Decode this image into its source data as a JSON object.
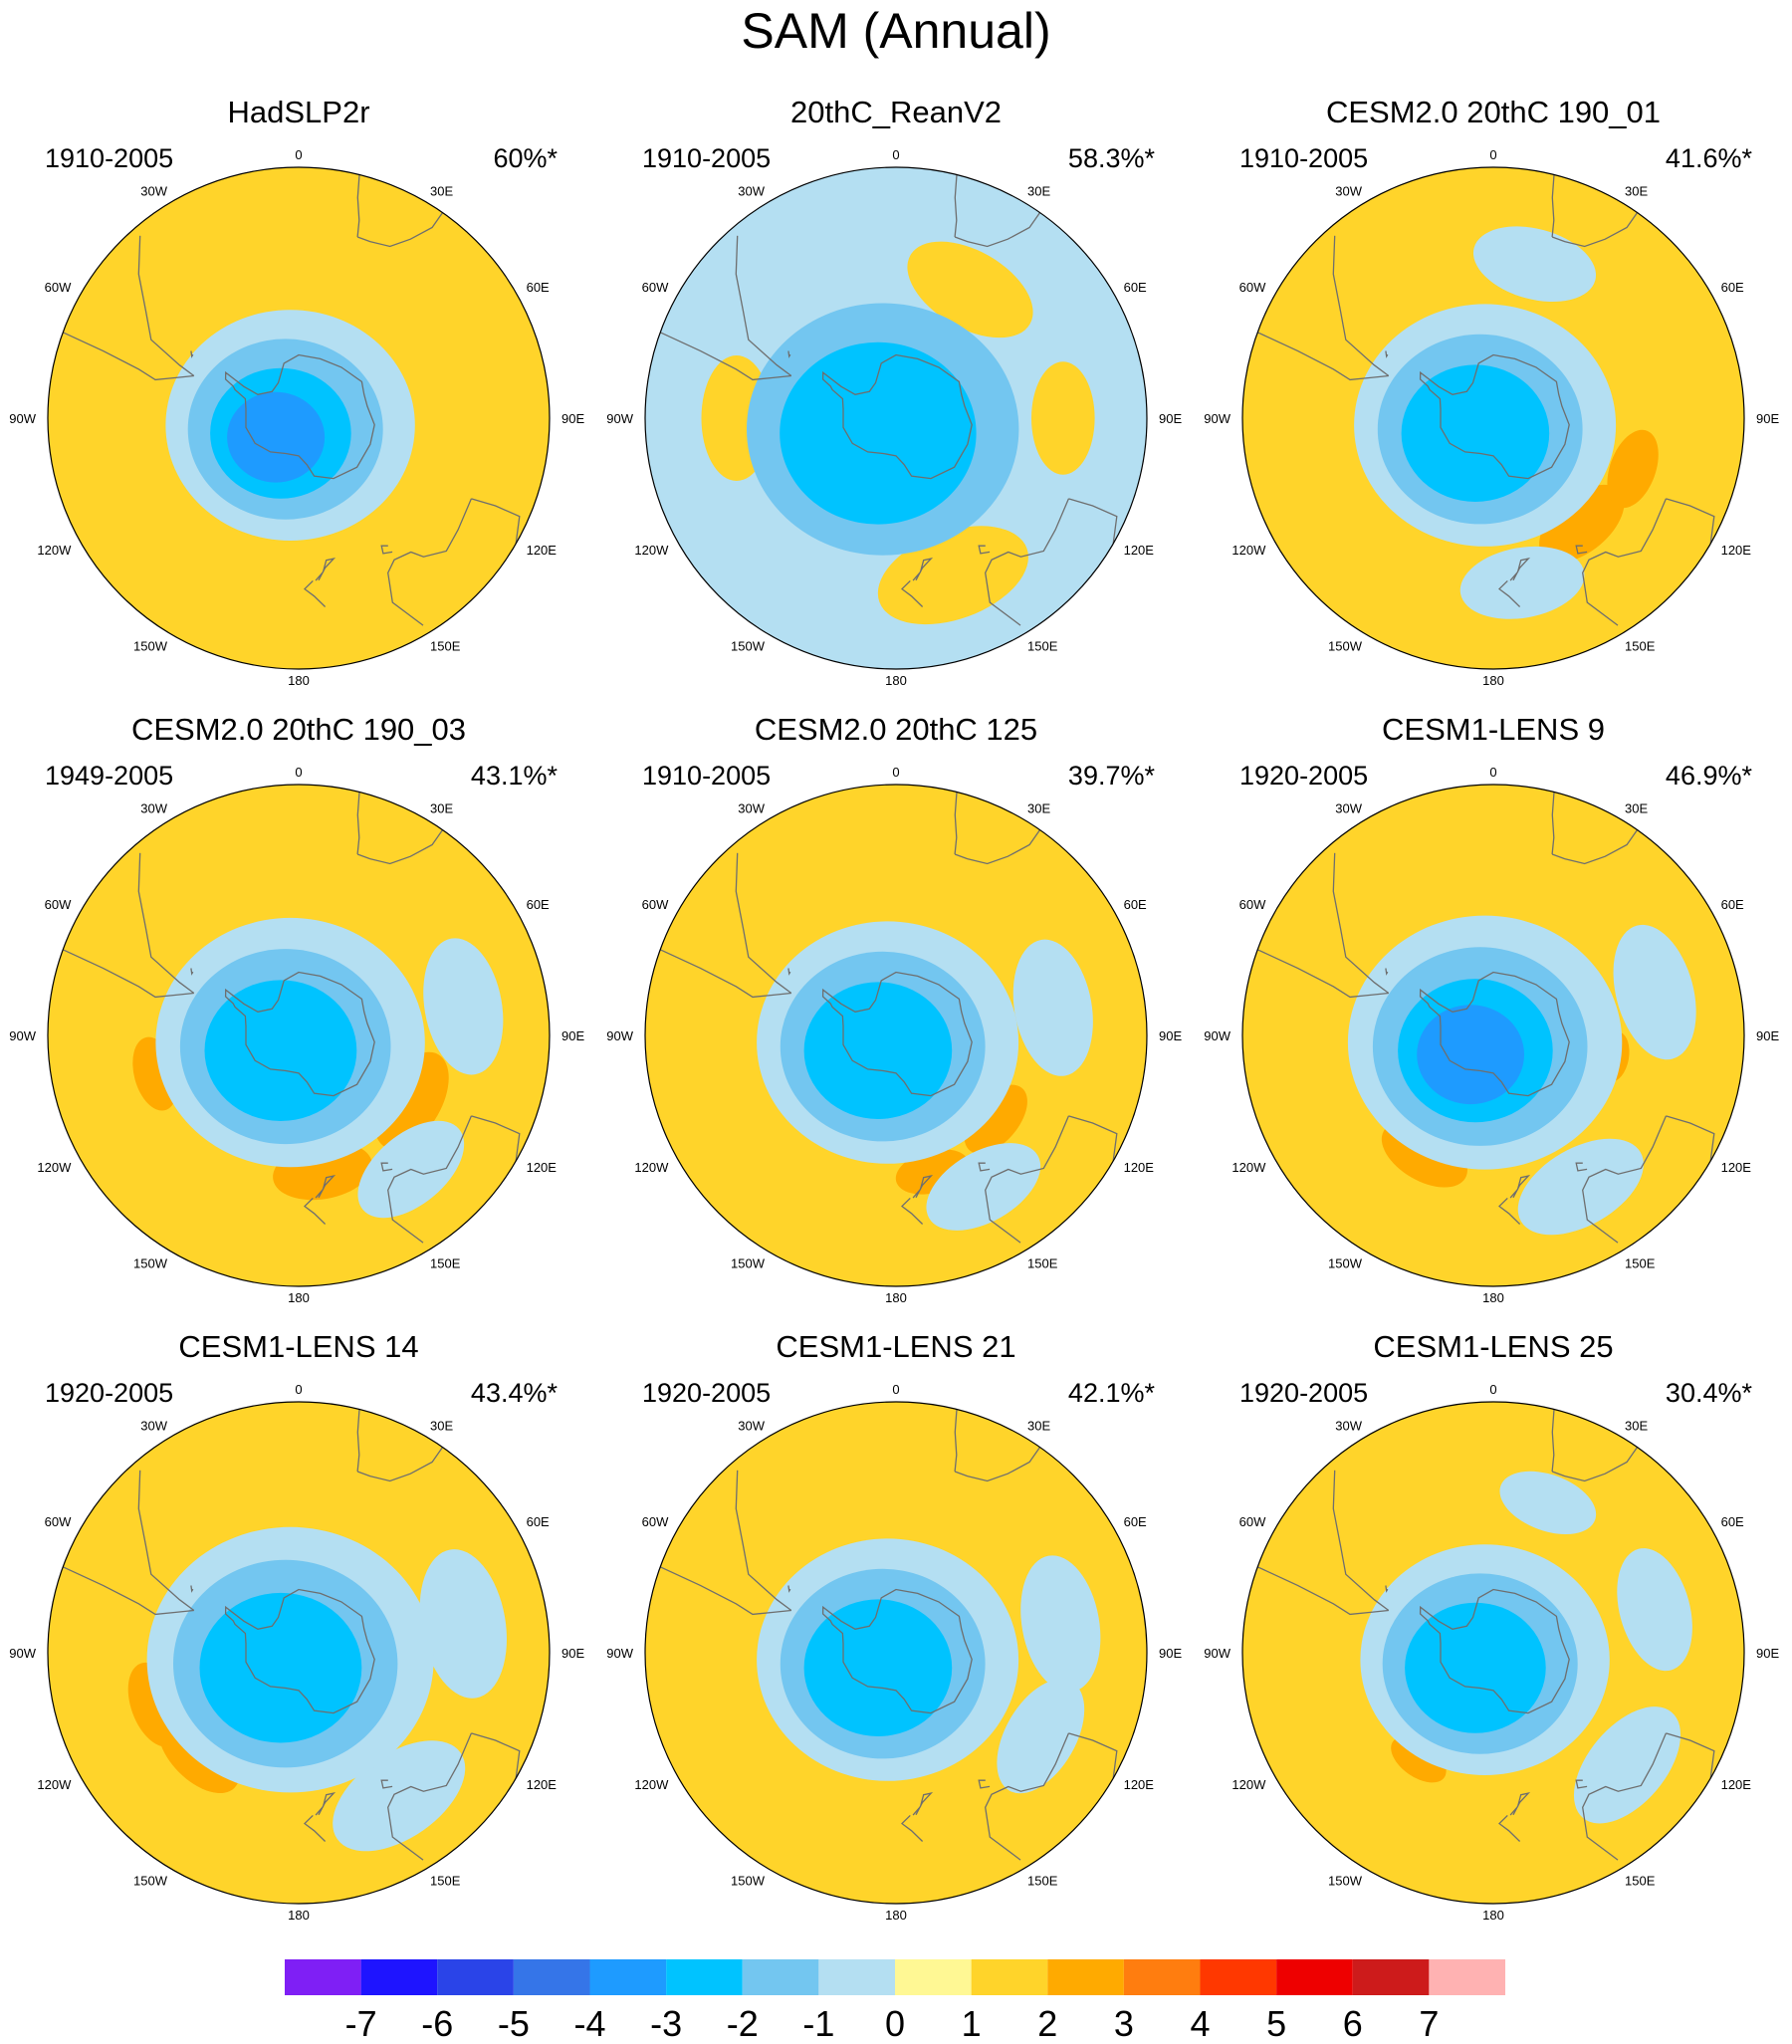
{
  "title": "SAM (Annual)",
  "colors": {
    "land_outline": "#6e6e6e",
    "map_border": "#000000",
    "levels": [
      "#7f1ff5",
      "#1e14ff",
      "#2a44e8",
      "#3575e8",
      "#1e9bff",
      "#00c3ff",
      "#73c6f0",
      "#b4dff2",
      "#fff894",
      "#ffd42a",
      "#ffaa00",
      "#ff7d0f",
      "#ff3800",
      "#ee0000",
      "#cd1b1b",
      "#ffb2b2"
    ]
  },
  "meridian_labels": [
    "0",
    "30E",
    "60E",
    "90E",
    "120E",
    "150E",
    "180",
    "150W",
    "120W",
    "90W",
    "60W",
    "30W"
  ],
  "chart_data": {
    "type": "heatmap",
    "projection": "south-polar stereographic",
    "colorbar": {
      "ticks": [
        "-7",
        "-6",
        "-5",
        "-4",
        "-3",
        "-2",
        "-1",
        "0",
        "1",
        "2",
        "3",
        "4",
        "5",
        "6",
        "7"
      ],
      "levels": [
        -8,
        -7,
        -6,
        -5,
        -4,
        -3,
        -2,
        -1,
        0,
        1,
        2,
        3,
        4,
        5,
        6,
        7,
        8
      ]
    },
    "panels": [
      {
        "title": "HadSLP2r",
        "period": "1910-2005",
        "variance": "60%*",
        "background_level": 1,
        "ring_scale": 1.0,
        "min_level": -4,
        "features": [
          {
            "lon": 250,
            "lat": -82,
            "r": 0.28,
            "level": -4
          },
          {
            "lon": 200,
            "lat": -86,
            "r": 0.22,
            "level": -3
          }
        ]
      },
      {
        "title": "20thC_ReanV2",
        "period": "1910-2005",
        "variance": "58.3%*",
        "background_level": -1,
        "ring_scale": 1.55,
        "min_level": -3,
        "features": [
          {
            "lon": 30,
            "lat": -45,
            "r": 0.22,
            "level": 1
          },
          {
            "lon": 90,
            "lat": -40,
            "r": 0.18,
            "level": 1
          },
          {
            "lon": 160,
            "lat": -40,
            "r": 0.25,
            "level": 1
          },
          {
            "lon": 270,
            "lat": -42,
            "r": 0.2,
            "level": 1
          }
        ]
      },
      {
        "title": "CESM2.0 20thC 190_01",
        "period": "1910-2005",
        "variance": "41.6%*",
        "background_level": 1,
        "ring_scale": 1.05,
        "min_level": -3,
        "features": [
          {
            "lon": 140,
            "lat": -48,
            "r": 0.16,
            "level": 2
          },
          {
            "lon": 110,
            "lat": -45,
            "r": 0.13,
            "level": 2
          },
          {
            "lon": 170,
            "lat": -40,
            "r": 0.2,
            "level": -1
          },
          {
            "lon": 15,
            "lat": -42,
            "r": 0.2,
            "level": -1
          }
        ]
      },
      {
        "title": "CESM2.0 20thC 190_03",
        "period": "1949-2005",
        "variance": "43.1%*",
        "background_level": 1,
        "ring_scale": 1.08,
        "min_level": -3,
        "features": [
          {
            "lon": 120,
            "lat": -50,
            "r": 0.17,
            "level": 2
          },
          {
            "lon": 170,
            "lat": -48,
            "r": 0.16,
            "level": 2
          },
          {
            "lon": 255,
            "lat": -45,
            "r": 0.12,
            "level": 2
          },
          {
            "lon": 80,
            "lat": -40,
            "r": 0.22,
            "level": -1
          },
          {
            "lon": 140,
            "lat": -38,
            "r": 0.2,
            "level": -1
          }
        ]
      },
      {
        "title": "CESM2.0 20thC 125",
        "period": "1910-2005",
        "variance": "39.7%*",
        "background_level": 1,
        "ring_scale": 1.05,
        "min_level": -3,
        "features": [
          {
            "lon": 130,
            "lat": -50,
            "r": 0.13,
            "level": 2
          },
          {
            "lon": 165,
            "lat": -47,
            "r": 0.12,
            "level": 2
          },
          {
            "lon": 80,
            "lat": -42,
            "r": 0.22,
            "level": -1
          },
          {
            "lon": 150,
            "lat": -38,
            "r": 0.2,
            "level": -1
          }
        ]
      },
      {
        "title": "CESM1-LENS 9",
        "period": "1920-2005",
        "variance": "46.9%*",
        "background_level": 1,
        "ring_scale": 1.1,
        "min_level": -4,
        "features": [
          {
            "lon": 210,
            "lat": -48,
            "r": 0.15,
            "level": 2
          },
          {
            "lon": 100,
            "lat": -52,
            "r": 0.08,
            "level": 2
          },
          {
            "lon": 75,
            "lat": -40,
            "r": 0.22,
            "level": -1
          },
          {
            "lon": 150,
            "lat": -38,
            "r": 0.22,
            "level": -1
          }
        ]
      },
      {
        "title": "CESM1-LENS 14",
        "period": "1920-2005",
        "variance": "43.4%*",
        "background_level": 1,
        "ring_scale": 1.15,
        "min_level": -3,
        "features": [
          {
            "lon": 225,
            "lat": -47,
            "r": 0.16,
            "level": 2
          },
          {
            "lon": 250,
            "lat": -44,
            "r": 0.14,
            "level": 2
          },
          {
            "lon": 80,
            "lat": -40,
            "r": 0.24,
            "level": -1
          },
          {
            "lon": 145,
            "lat": -38,
            "r": 0.24,
            "level": -1
          }
        ]
      },
      {
        "title": "CESM1-LENS 21",
        "period": "1920-2005",
        "variance": "42.1%*",
        "background_level": 1,
        "ring_scale": 1.05,
        "min_level": -3,
        "features": [
          {
            "lon": 80,
            "lat": -40,
            "r": 0.22,
            "level": -1
          },
          {
            "lon": 120,
            "lat": -40,
            "r": 0.2,
            "level": -1
          }
        ]
      },
      {
        "title": "CESM1-LENS 25",
        "period": "1920-2005",
        "variance": "30.4%*",
        "background_level": 1,
        "ring_scale": 1.0,
        "min_level": -3,
        "features": [
          {
            "lon": 215,
            "lat": -50,
            "r": 0.1,
            "level": 2
          },
          {
            "lon": 75,
            "lat": -40,
            "r": 0.2,
            "level": -1
          },
          {
            "lon": 130,
            "lat": -38,
            "r": 0.22,
            "level": -1
          },
          {
            "lon": 20,
            "lat": -42,
            "r": 0.16,
            "level": -1
          }
        ]
      }
    ]
  }
}
